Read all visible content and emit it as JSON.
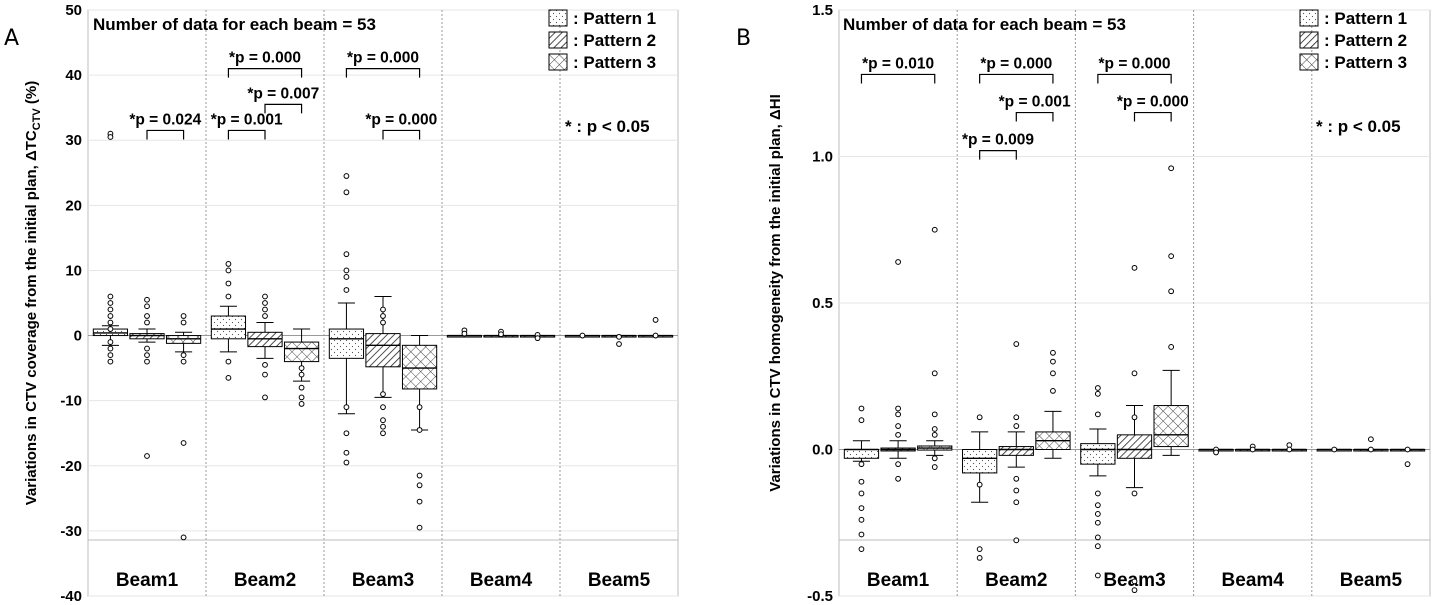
{
  "chart_data": [
    {
      "type": "box",
      "panel_label": "A",
      "ylabel_main": "Variations in CTV coverage from the initial plan, ΔTC",
      "ylabel_sub": "CTV",
      "ylabel_tail": " (%)",
      "ylim": [
        -40,
        50
      ],
      "yticks": [
        -40,
        -30,
        -20,
        -10,
        0,
        10,
        20,
        30,
        40,
        50
      ],
      "categories": [
        "Beam1",
        "Beam2",
        "Beam3",
        "Beam4",
        "Beam5"
      ],
      "legend": [
        ": Pattern 1",
        ": Pattern 2",
        ": Pattern 3"
      ],
      "note": "Number of data for each beam = 53",
      "sig_note": "* : p < 0.05",
      "boxes": [
        {
          "beam": 0,
          "pattern": 0,
          "whislo": -1.5,
          "q1": 0.0,
          "med": 0.4,
          "q3": 1.0,
          "whishi": 1.5,
          "fliers": [
            31,
            30.5,
            6,
            5,
            4,
            3,
            2,
            1,
            -1,
            -2,
            -3,
            -4
          ]
        },
        {
          "beam": 0,
          "pattern": 1,
          "whislo": -1.0,
          "q1": -0.5,
          "med": 0.0,
          "q3": 0.3,
          "whishi": 1.0,
          "fliers": [
            5.5,
            4.5,
            3,
            2,
            -2,
            -3,
            -4,
            -18.5
          ]
        },
        {
          "beam": 0,
          "pattern": 2,
          "whislo": -2.5,
          "q1": -1.2,
          "med": -0.5,
          "q3": 0.0,
          "whishi": 0.5,
          "fliers": [
            3,
            2,
            -3,
            -4,
            -16.5,
            -31
          ]
        },
        {
          "beam": 1,
          "pattern": 0,
          "whislo": -2.5,
          "q1": -0.5,
          "med": 1.0,
          "q3": 3.0,
          "whishi": 4.5,
          "fliers": [
            11,
            10,
            8,
            6,
            -4,
            -6.5
          ]
        },
        {
          "beam": 1,
          "pattern": 1,
          "whislo": -3.5,
          "q1": -1.7,
          "med": -0.5,
          "q3": 0.5,
          "whishi": 2.0,
          "fliers": [
            6,
            5,
            4,
            3,
            -4.5,
            -6,
            -9.5
          ]
        },
        {
          "beam": 1,
          "pattern": 2,
          "whislo": -7.0,
          "q1": -4.0,
          "med": -2.0,
          "q3": -1.0,
          "whishi": 1.0,
          "fliers": [
            -5,
            -6,
            -8,
            -9.5,
            -10.5
          ]
        },
        {
          "beam": 2,
          "pattern": 0,
          "whislo": -12.0,
          "q1": -3.5,
          "med": -0.5,
          "q3": 1.0,
          "whishi": 5.0,
          "fliers": [
            24.5,
            22,
            12.5,
            10,
            9,
            7,
            -11,
            -15,
            -18,
            -19.5
          ]
        },
        {
          "beam": 2,
          "pattern": 1,
          "whislo": -9.5,
          "q1": -4.8,
          "med": -1.5,
          "q3": 0.3,
          "whishi": 6.0,
          "fliers": [
            4,
            3,
            2,
            -9,
            -11,
            -13,
            -15,
            -14
          ]
        },
        {
          "beam": 2,
          "pattern": 2,
          "whislo": -14.5,
          "q1": -8.2,
          "med": -5.0,
          "q3": -1.5,
          "whishi": 0.0,
          "fliers": [
            -11,
            -14.5,
            -21.5,
            -23,
            -25.5,
            -29.5
          ]
        },
        {
          "beam": 3,
          "pattern": 0,
          "whislo": 0,
          "q1": 0,
          "med": 0,
          "q3": 0,
          "whishi": 0,
          "fliers": [
            0.8,
            0.3
          ]
        },
        {
          "beam": 3,
          "pattern": 1,
          "whislo": 0,
          "q1": 0,
          "med": 0,
          "q3": 0,
          "whishi": 0,
          "fliers": [
            0.6,
            0.2
          ]
        },
        {
          "beam": 3,
          "pattern": 2,
          "whislo": 0,
          "q1": 0,
          "med": 0,
          "q3": 0,
          "whishi": 0,
          "fliers": [
            0.1,
            -0.4
          ]
        },
        {
          "beam": 4,
          "pattern": 0,
          "whislo": 0,
          "q1": 0,
          "med": 0,
          "q3": 0,
          "whishi": 0,
          "fliers": [
            0.0
          ]
        },
        {
          "beam": 4,
          "pattern": 1,
          "whislo": 0,
          "q1": 0,
          "med": 0,
          "q3": 0,
          "whishi": 0,
          "fliers": [
            -0.2,
            -1.3
          ]
        },
        {
          "beam": 4,
          "pattern": 2,
          "whislo": 0,
          "q1": 0,
          "med": 0,
          "q3": 0,
          "whishi": 0,
          "fliers": [
            2.4,
            0.0
          ]
        }
      ],
      "brackets": [
        {
          "beam": 0,
          "from": 1,
          "to": 2,
          "y": 31.5,
          "label": "*p = 0.024"
        },
        {
          "beam": 1,
          "from": 0,
          "to": 1,
          "y": 31.5,
          "label": "*p = 0.001"
        },
        {
          "beam": 1,
          "from": 0,
          "to": 2,
          "y": 41.0,
          "label": "*p = 0.000"
        },
        {
          "beam": 1,
          "from": 1,
          "to": 2,
          "y": 35.5,
          "label": "*p = 0.007"
        },
        {
          "beam": 2,
          "from": 0,
          "to": 2,
          "y": 41.0,
          "label": "*p = 0.000"
        },
        {
          "beam": 2,
          "from": 1,
          "to": 2,
          "y": 31.5,
          "label": "*p = 0.000"
        }
      ]
    },
    {
      "type": "box",
      "panel_label": "B",
      "ylabel_main": "Variations in CTV homogeneity from the initial plan, ΔHI",
      "ylabel_sub": "",
      "ylabel_tail": "",
      "ylim": [
        -0.5,
        1.5
      ],
      "yticks": [
        -0.5,
        0.0,
        0.5,
        1.0,
        1.5
      ],
      "categories": [
        "Beam1",
        "Beam2",
        "Beam3",
        "Beam4",
        "Beam5"
      ],
      "legend": [
        ": Pattern 1",
        ": Pattern 2",
        ": Pattern 3"
      ],
      "note": "Number of data for each beam = 53",
      "sig_note": "* : p < 0.05",
      "boxes": [
        {
          "beam": 0,
          "pattern": 0,
          "whislo": -0.04,
          "q1": -0.03,
          "med": 0.0,
          "q3": 0.0,
          "whishi": 0.03,
          "fliers": [
            0.14,
            0.1,
            -0.05,
            -0.11,
            -0.15,
            -0.2,
            -0.24,
            -0.29,
            -0.34
          ]
        },
        {
          "beam": 0,
          "pattern": 1,
          "whislo": -0.03,
          "q1": -0.005,
          "med": 0.0,
          "q3": 0.005,
          "whishi": 0.03,
          "fliers": [
            0.64,
            0.14,
            0.12,
            0.08,
            0.05,
            -0.05,
            -0.1
          ]
        },
        {
          "beam": 0,
          "pattern": 2,
          "whislo": -0.02,
          "q1": -0.002,
          "med": 0.005,
          "q3": 0.012,
          "whishi": 0.03,
          "fliers": [
            0.75,
            0.26,
            0.12,
            0.07,
            0.05,
            -0.03,
            -0.06
          ]
        },
        {
          "beam": 1,
          "pattern": 0,
          "whislo": -0.18,
          "q1": -0.08,
          "med": -0.03,
          "q3": 0.0,
          "whishi": 0.06,
          "fliers": [
            0.11,
            -0.12,
            -0.34,
            -0.37
          ]
        },
        {
          "beam": 1,
          "pattern": 1,
          "whislo": -0.06,
          "q1": -0.02,
          "med": 0.0,
          "q3": 0.01,
          "whishi": 0.06,
          "fliers": [
            0.36,
            0.11,
            0.08,
            -0.1,
            -0.14,
            -0.18,
            -0.31
          ]
        },
        {
          "beam": 1,
          "pattern": 2,
          "whislo": -0.03,
          "q1": 0.0,
          "med": 0.03,
          "q3": 0.06,
          "whishi": 0.13,
          "fliers": [
            0.33,
            0.3,
            0.26,
            0.2
          ]
        },
        {
          "beam": 2,
          "pattern": 0,
          "whislo": -0.09,
          "q1": -0.05,
          "med": 0.0,
          "q3": 0.02,
          "whishi": 0.07,
          "fliers": [
            0.21,
            0.19,
            0.12,
            -0.15,
            -0.19,
            -0.22,
            -0.25,
            -0.3,
            -0.33,
            -0.43
          ]
        },
        {
          "beam": 2,
          "pattern": 1,
          "whislo": -0.13,
          "q1": -0.03,
          "med": 0.0,
          "q3": 0.05,
          "whishi": 0.15,
          "fliers": [
            0.62,
            0.26,
            0.11,
            -0.15,
            -0.45,
            -0.48
          ]
        },
        {
          "beam": 2,
          "pattern": 2,
          "whislo": -0.02,
          "q1": 0.01,
          "med": 0.05,
          "q3": 0.15,
          "whishi": 0.27,
          "fliers": [
            0.96,
            0.66,
            0.54,
            0.35
          ]
        },
        {
          "beam": 3,
          "pattern": 0,
          "whislo": 0,
          "q1": 0,
          "med": 0,
          "q3": 0,
          "whishi": 0,
          "fliers": [
            0.0,
            -0.01
          ]
        },
        {
          "beam": 3,
          "pattern": 1,
          "whislo": 0,
          "q1": 0,
          "med": 0,
          "q3": 0,
          "whishi": 0,
          "fliers": [
            0.01,
            0.0
          ]
        },
        {
          "beam": 3,
          "pattern": 2,
          "whislo": 0,
          "q1": 0,
          "med": 0,
          "q3": 0,
          "whishi": 0,
          "fliers": [
            0.015,
            0.0
          ]
        },
        {
          "beam": 4,
          "pattern": 0,
          "whislo": 0,
          "q1": 0,
          "med": 0,
          "q3": 0,
          "whishi": 0,
          "fliers": [
            0.0
          ]
        },
        {
          "beam": 4,
          "pattern": 1,
          "whislo": 0,
          "q1": 0,
          "med": 0,
          "q3": 0,
          "whishi": 0,
          "fliers": [
            0.035,
            0.0
          ]
        },
        {
          "beam": 4,
          "pattern": 2,
          "whislo": 0,
          "q1": 0,
          "med": 0,
          "q3": 0,
          "whishi": 0,
          "fliers": [
            0.0,
            -0.05
          ]
        }
      ],
      "brackets": [
        {
          "beam": 0,
          "from": 0,
          "to": 2,
          "y": 1.28,
          "label": "*p = 0.010"
        },
        {
          "beam": 1,
          "from": 0,
          "to": 1,
          "y": 1.02,
          "label": "*p = 0.009"
        },
        {
          "beam": 1,
          "from": 0,
          "to": 2,
          "y": 1.28,
          "label": "*p = 0.000"
        },
        {
          "beam": 1,
          "from": 1,
          "to": 2,
          "y": 1.15,
          "label": "*p = 0.001"
        },
        {
          "beam": 2,
          "from": 0,
          "to": 2,
          "y": 1.28,
          "label": "*p = 0.000"
        },
        {
          "beam": 2,
          "from": 1,
          "to": 2,
          "y": 1.15,
          "label": "*p = 0.000"
        }
      ]
    }
  ]
}
